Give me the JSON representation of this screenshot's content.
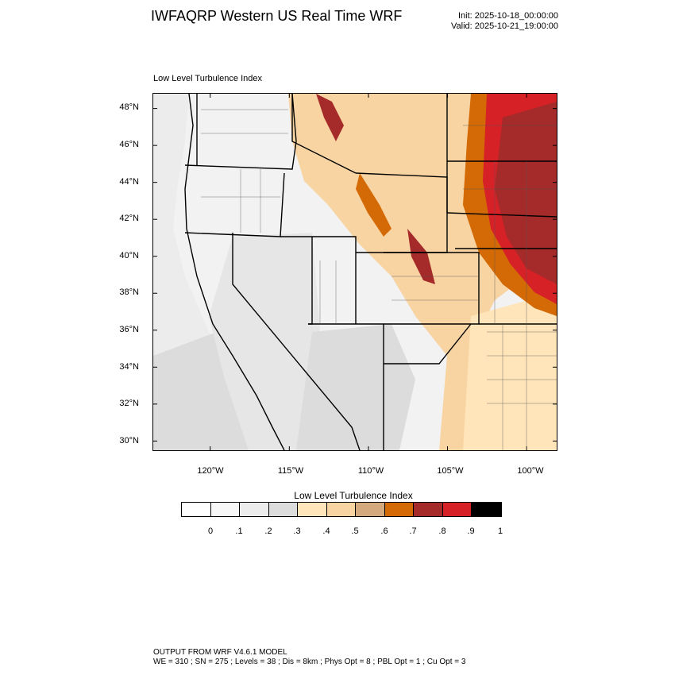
{
  "header": {
    "title": "IWFAQRP Western US Real Time WRF",
    "init": "Init: 2025-10-18_00:00:00",
    "valid": "Valid: 2025-10-21_19:00:00"
  },
  "map": {
    "caption": "Low Level Turbulence Index",
    "lat_labels": [
      "48°N",
      "46°N",
      "44°N",
      "42°N",
      "40°N",
      "38°N",
      "36°N",
      "34°N",
      "32°N",
      "30°N"
    ],
    "lon_labels": [
      "120°W",
      "115°W",
      "110°W",
      "105°W",
      "100°W"
    ],
    "extent": {
      "lon_min": -123.6,
      "lon_max": -98.1,
      "lat_min": 29.5,
      "lat_max": 48.8
    }
  },
  "colorbar": {
    "title": "Low Level Turbulence Index",
    "labels": [
      "0",
      ".1",
      ".2",
      ".3",
      ".4",
      ".5",
      ".6",
      ".7",
      ".8",
      ".9",
      "1"
    ],
    "colors": [
      "#ffffff",
      "#f7f7f7",
      "#ececec",
      "#dcdcdc",
      "#ffe5b9",
      "#f8d4a2",
      "#d3a97d",
      "#d46a06",
      "#a52a2a",
      "#d62127",
      "#000000"
    ]
  },
  "footer": {
    "line1": "OUTPUT FROM WRF V4.6.1 MODEL",
    "line2": "WE = 310 ; SN = 275 ; Levels = 38 ; Dis = 8km ; Phys Opt = 8 ; PBL Opt = 1 ; Cu Opt = 3"
  }
}
